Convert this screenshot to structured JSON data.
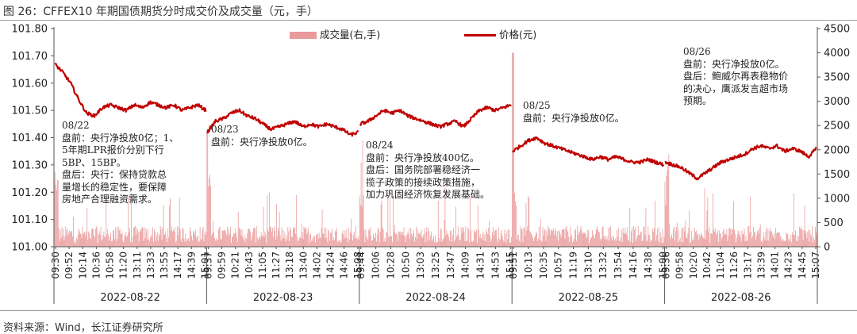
{
  "figure_title": "图 26：CFFEX10 年期国债期货分时成交价及成交量（元，手）",
  "source_note": "资料来源：Wind，长江证券研究所",
  "colors": {
    "price": "#c00000",
    "volume": "#e99a9a",
    "axis": "#333333"
  },
  "legend": {
    "volume": "成交量(右,手)",
    "price": "价格(元)"
  },
  "annotations": [
    {
      "date": "08/22",
      "lines": [
        "盘前：央行净投放0亿；1、",
        "5年期LPR报价分别下行",
        "5BP、15BP。",
        "盘后：央行：保持贷款总",
        "量增长的稳定性，要保障",
        "房地产合理融资需求。"
      ]
    },
    {
      "date": "08/23",
      "lines": [
        "盘前：央行净投放0亿。"
      ]
    },
    {
      "date": "08/24",
      "lines": [
        "盘前：央行净投放400亿。",
        "盘后：国务院部署稳经济一",
        "揽子政策的接续政策措施，",
        "加力巩固经济恢复发展基础。"
      ]
    },
    {
      "date": "08/25",
      "lines": [
        "盘前：央行净投放0亿。"
      ]
    },
    {
      "date": "08/26",
      "lines": [
        "盘前：央行净投放0亿。",
        "盘后：鲍威尔再表稳物价",
        "的决心，鹰派发言超市场",
        "预期。"
      ]
    }
  ],
  "chart_data": {
    "type": "line",
    "title": "CFFEX10 年期国债期货分时成交价及成交量（元，手）",
    "y_left": {
      "label": "价格(元)",
      "range": [
        101.0,
        101.8
      ],
      "ticks": [
        "101.00",
        "101.10",
        "101.20",
        "101.30",
        "101.40",
        "101.50",
        "101.60",
        "101.70",
        "101.80"
      ]
    },
    "y_right": {
      "label": "成交量(右,手)",
      "range": [
        0,
        4500
      ],
      "ticks": [
        "0",
        "500",
        "1000",
        "1500",
        "2000",
        "2500",
        "3000",
        "3500",
        "4000",
        "4500"
      ]
    },
    "grid": false,
    "legend_position": "top-center",
    "days": [
      {
        "date": "2022-08-22",
        "ticks": [
          "09:30",
          "09:52",
          "10:14",
          "10:36",
          "10:58",
          "11:20",
          "13:11",
          "13:33",
          "13:55",
          "14:17",
          "14:39",
          "15:01"
        ],
        "price": [
          101.67,
          101.64,
          101.6,
          101.54,
          101.49,
          101.48,
          101.51,
          101.52,
          101.51,
          101.5,
          101.52,
          101.51,
          101.53,
          101.52,
          101.51,
          101.52,
          101.5,
          101.51,
          101.52,
          101.5
        ]
      },
      {
        "date": "2022-08-23",
        "ticks": [
          "09:37",
          "09:59",
          "10:21",
          "10:43",
          "11:05",
          "11:27",
          "13:18",
          "13:40",
          "14:02",
          "14:24",
          "14:46",
          "15:08"
        ],
        "price": [
          101.42,
          101.46,
          101.47,
          101.49,
          101.5,
          101.48,
          101.47,
          101.45,
          101.43,
          101.44,
          101.45,
          101.46,
          101.44,
          101.45,
          101.44,
          101.45,
          101.44,
          101.43,
          101.41,
          101.42
        ]
      },
      {
        "date": "2022-08-24",
        "ticks": [
          "09:44",
          "10:06",
          "10:28",
          "10:50",
          "13:03",
          "13:25",
          "13:47",
          "14:09",
          "14:31",
          "14:53",
          "15:15"
        ],
        "price": [
          101.45,
          101.46,
          101.48,
          101.5,
          101.49,
          101.5,
          101.48,
          101.47,
          101.46,
          101.45,
          101.44,
          101.45,
          101.46,
          101.44,
          101.47,
          101.5,
          101.51,
          101.5,
          101.51,
          101.52
        ]
      },
      {
        "date": "2022-08-25",
        "ticks": [
          "09:51",
          "10:13",
          "10:35",
          "10:57",
          "11:19",
          "13:10",
          "13:32",
          "13:54",
          "14:16",
          "14:38",
          "15:00"
        ],
        "price": [
          101.35,
          101.37,
          101.39,
          101.4,
          101.38,
          101.37,
          101.36,
          101.35,
          101.34,
          101.33,
          101.32,
          101.33,
          101.32,
          101.33,
          101.32,
          101.31,
          101.31,
          101.32,
          101.31,
          101.3
        ]
      },
      {
        "date": "2022-08-26",
        "ticks": [
          "09:36",
          "09:58",
          "10:20",
          "10:42",
          "11:04",
          "11:26",
          "13:17",
          "13:39",
          "14:01",
          "14:23",
          "14:45",
          "15:07"
        ],
        "price": [
          101.31,
          101.3,
          101.29,
          101.27,
          101.25,
          101.27,
          101.29,
          101.31,
          101.32,
          101.33,
          101.34,
          101.36,
          101.37,
          101.36,
          101.37,
          101.35,
          101.36,
          101.35,
          101.33,
          101.36
        ]
      }
    ]
  }
}
